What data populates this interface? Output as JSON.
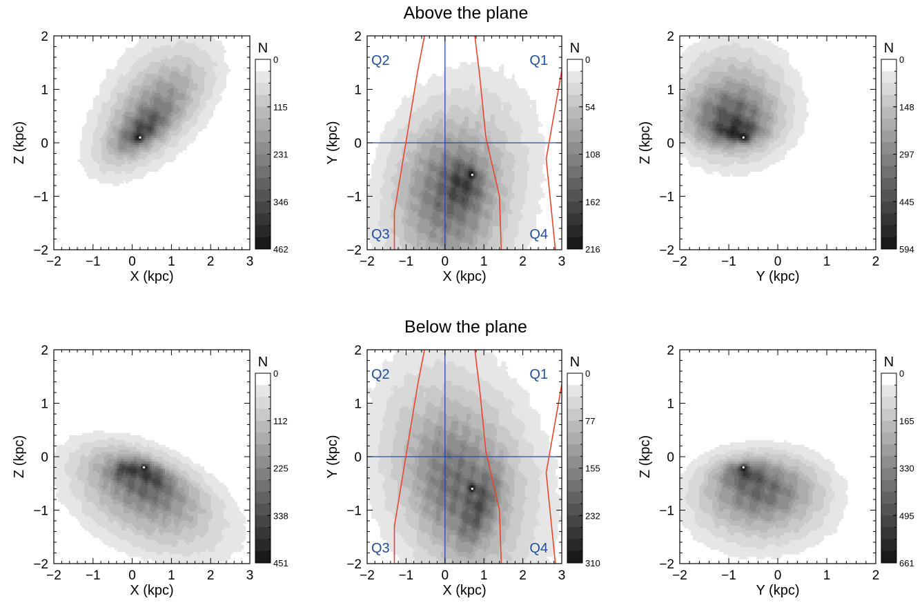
{
  "rows": [
    {
      "title": "Above the plane"
    },
    {
      "title": "Below the plane"
    }
  ],
  "colors": {
    "quadrant_lines": "#1f4e9c",
    "quadrant_text": "#1f4e9c",
    "boundary_lines": "#e8452a",
    "colormap_low": "#ffffff",
    "colormap_high": "#1a1a1a"
  },
  "chart_data": [
    {
      "type": "heatmap",
      "panel": "above-xz",
      "xlabel": "X (kpc)",
      "ylabel": "Z (kpc)",
      "xlim": [
        -2,
        3
      ],
      "ylim": [
        -2,
        2
      ],
      "xticks": [
        "−2",
        "−1",
        "0",
        "1",
        "2",
        "3"
      ],
      "yticks": [
        "−2",
        "−1",
        "0",
        "1",
        "2"
      ],
      "colorbar": {
        "title": "N",
        "tick_labels": [
          "0",
          "115",
          "231",
          "346",
          "462"
        ],
        "max": 462
      },
      "peak": {
        "x": 0.2,
        "y": 0.1
      },
      "blobs": [
        {
          "x": 0.6,
          "y": 0.85,
          "sx": 1.1,
          "sy": 0.7,
          "rot": 30,
          "w": 0.22
        },
        {
          "x": 0.45,
          "y": 0.5,
          "sx": 0.9,
          "sy": 0.38,
          "rot": 32,
          "w": 0.4
        },
        {
          "x": 0.25,
          "y": 0.22,
          "sx": 0.45,
          "sy": 0.18,
          "rot": 25,
          "w": 0.45
        },
        {
          "x": 0.2,
          "y": 0.1,
          "sx": 0.08,
          "sy": 0.05,
          "rot": 0,
          "w": 0.55
        }
      ]
    },
    {
      "type": "heatmap",
      "panel": "above-xy",
      "xlabel": "X (kpc)",
      "ylabel": "Y (kpc)",
      "xlim": [
        -2,
        3
      ],
      "ylim": [
        -2,
        2
      ],
      "xticks": [
        "−2",
        "−1",
        "0",
        "1",
        "2",
        "3"
      ],
      "yticks": [
        "−2",
        "−1",
        "0",
        "1",
        "2"
      ],
      "colorbar": {
        "title": "N",
        "tick_labels": [
          "0",
          "54",
          "108",
          "162",
          "216"
        ],
        "max": 216
      },
      "quadrants": [
        "Q1",
        "Q2",
        "Q3",
        "Q4"
      ],
      "peak": {
        "x": 0.7,
        "y": -0.6
      },
      "blobs": [
        {
          "x": 0.3,
          "y": -0.9,
          "sx": 1.4,
          "sy": 1.1,
          "rot": 50,
          "w": 0.3
        },
        {
          "x": 0.1,
          "y": -1.0,
          "sx": 0.75,
          "sy": 0.8,
          "rot": 30,
          "w": 0.4
        },
        {
          "x": 0.5,
          "y": -0.75,
          "sx": 0.3,
          "sy": 0.28,
          "rot": 0,
          "w": 0.35
        },
        {
          "x": 0.7,
          "y": -0.6,
          "sx": 0.07,
          "sy": 0.06,
          "rot": 0,
          "w": 0.4
        }
      ],
      "boundaries": [
        [
          [
            -1.3,
            -2.1
          ],
          [
            -1.3,
            -1.3
          ],
          [
            -0.7,
            1.35
          ],
          [
            -0.5,
            2.1
          ]
        ],
        [
          [
            0.75,
            2.1
          ],
          [
            0.9,
            1.2
          ],
          [
            1.05,
            0.1
          ],
          [
            1.4,
            -1.0
          ],
          [
            1.45,
            -2.1
          ]
        ],
        [
          [
            2.85,
            -2.1
          ],
          [
            2.6,
            -0.3
          ],
          [
            3.0,
            1.35
          ]
        ]
      ]
    },
    {
      "type": "heatmap",
      "panel": "above-yz",
      "xlabel": "Y (kpc)",
      "ylabel": "Z (kpc)",
      "xlim": [
        -2,
        2
      ],
      "ylim": [
        -2,
        2
      ],
      "xticks": [
        "−2",
        "−1",
        "0",
        "1",
        "2"
      ],
      "yticks": [
        "−2",
        "−1",
        "0",
        "1",
        "2"
      ],
      "colorbar": {
        "title": "N",
        "tick_labels": [
          "0",
          "148",
          "297",
          "445",
          "594"
        ],
        "max": 594
      },
      "peak": {
        "x": -0.7,
        "y": 0.1
      },
      "blobs": [
        {
          "x": -0.9,
          "y": 0.75,
          "sx": 0.75,
          "sy": 0.7,
          "rot": 0,
          "w": 0.3
        },
        {
          "x": -1.0,
          "y": 0.45,
          "sx": 0.55,
          "sy": 0.35,
          "rot": 0,
          "w": 0.4
        },
        {
          "x": -0.85,
          "y": 0.2,
          "sx": 0.32,
          "sy": 0.14,
          "rot": 0,
          "w": 0.4
        },
        {
          "x": -0.7,
          "y": 0.1,
          "sx": 0.07,
          "sy": 0.05,
          "rot": 0,
          "w": 0.4
        }
      ]
    },
    {
      "type": "heatmap",
      "panel": "below-xz",
      "xlabel": "X (kpc)",
      "ylabel": "Z (kpc)",
      "xlim": [
        -2,
        3
      ],
      "ylim": [
        -2,
        2
      ],
      "xticks": [
        "−2",
        "−1",
        "0",
        "1",
        "2",
        "3"
      ],
      "yticks": [
        "−2",
        "−1",
        "0",
        "1",
        "2"
      ],
      "colorbar": {
        "title": "N",
        "tick_labels": [
          "0",
          "112",
          "225",
          "338",
          "451"
        ],
        "max": 451
      },
      "peak": {
        "x": 0.3,
        "y": -0.2
      },
      "blobs": [
        {
          "x": 0.4,
          "y": -0.85,
          "sx": 1.3,
          "sy": 0.55,
          "rot": -15,
          "w": 0.3
        },
        {
          "x": 0.25,
          "y": -0.45,
          "sx": 0.8,
          "sy": 0.3,
          "rot": -15,
          "w": 0.35
        },
        {
          "x": -0.2,
          "y": -0.25,
          "sx": 0.2,
          "sy": 0.1,
          "rot": 0,
          "w": 0.3
        },
        {
          "x": 0.45,
          "y": -0.3,
          "sx": 0.35,
          "sy": 0.12,
          "rot": -20,
          "w": 0.3
        },
        {
          "x": 0.3,
          "y": -0.2,
          "sx": 0.06,
          "sy": 0.04,
          "rot": 0,
          "w": 0.4
        }
      ]
    },
    {
      "type": "heatmap",
      "panel": "below-xy",
      "xlabel": "X (kpc)",
      "ylabel": "Y (kpc)",
      "xlim": [
        -2,
        3
      ],
      "ylim": [
        -2,
        2
      ],
      "xticks": [
        "−2",
        "−1",
        "0",
        "1",
        "2",
        "3"
      ],
      "yticks": [
        "−2",
        "−1",
        "0",
        "1",
        "2"
      ],
      "colorbar": {
        "title": "N",
        "tick_labels": [
          "0",
          "77",
          "155",
          "232",
          "310"
        ],
        "max": 310
      },
      "quadrants": [
        "Q1",
        "Q2",
        "Q3",
        "Q4"
      ],
      "peak": {
        "x": 0.7,
        "y": -0.6
      },
      "blobs": [
        {
          "x": 0.4,
          "y": -0.3,
          "sx": 1.2,
          "sy": 1.5,
          "rot": 45,
          "w": 0.3
        },
        {
          "x": 0.3,
          "y": -0.6,
          "sx": 0.7,
          "sy": 0.9,
          "rot": 35,
          "w": 0.35
        },
        {
          "x": 0.9,
          "y": -0.95,
          "sx": 0.22,
          "sy": 0.55,
          "rot": -30,
          "w": 0.3
        },
        {
          "x": 0.7,
          "y": -0.6,
          "sx": 0.07,
          "sy": 0.06,
          "rot": 0,
          "w": 0.45
        }
      ],
      "boundaries": [
        [
          [
            -1.3,
            -2.1
          ],
          [
            -1.3,
            -1.3
          ],
          [
            -0.7,
            1.35
          ],
          [
            -0.5,
            2.1
          ]
        ],
        [
          [
            0.75,
            2.1
          ],
          [
            0.9,
            1.2
          ],
          [
            1.05,
            0.1
          ],
          [
            1.4,
            -1.0
          ],
          [
            1.45,
            -2.1
          ]
        ],
        [
          [
            2.85,
            -2.1
          ],
          [
            2.6,
            -0.3
          ],
          [
            3.0,
            1.35
          ]
        ]
      ]
    },
    {
      "type": "heatmap",
      "panel": "below-yz",
      "xlabel": "Y (kpc)",
      "ylabel": "Z (kpc)",
      "xlim": [
        -2,
        2
      ],
      "ylim": [
        -2,
        2
      ],
      "xticks": [
        "−2",
        "−1",
        "0",
        "1",
        "2"
      ],
      "yticks": [
        "−2",
        "−1",
        "0",
        "1",
        "2"
      ],
      "colorbar": {
        "title": "N",
        "tick_labels": [
          "0",
          "165",
          "330",
          "495",
          "661"
        ],
        "max": 661
      },
      "peak": {
        "x": -0.7,
        "y": -0.2
      },
      "blobs": [
        {
          "x": -0.35,
          "y": -0.85,
          "sx": 0.9,
          "sy": 0.55,
          "rot": 0,
          "w": 0.3
        },
        {
          "x": -0.35,
          "y": -0.55,
          "sx": 0.65,
          "sy": 0.35,
          "rot": 0,
          "w": 0.35
        },
        {
          "x": -0.7,
          "y": -0.3,
          "sx": 0.3,
          "sy": 0.14,
          "rot": 0,
          "w": 0.35
        },
        {
          "x": -0.7,
          "y": -0.2,
          "sx": 0.06,
          "sy": 0.04,
          "rot": 0,
          "w": 0.45
        }
      ]
    }
  ]
}
